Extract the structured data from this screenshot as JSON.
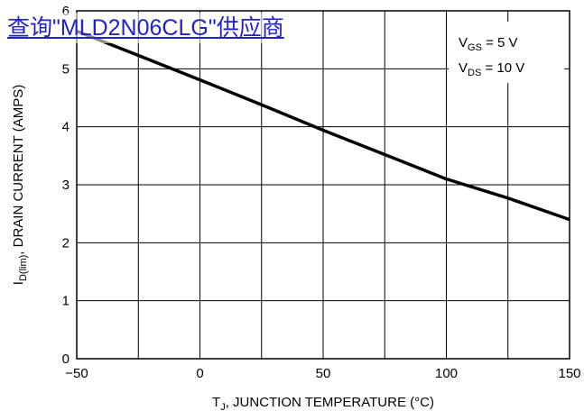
{
  "overlay_link": {
    "text": "查询\"MLD2N06CLG\"供应商"
  },
  "chart_data": {
    "type": "line",
    "xlabel": {
      "main": "T",
      "sub": "J",
      "rest": ", JUNCTION TEMPERATURE (°C)"
    },
    "ylabel": {
      "main": "I",
      "sub": "D(lim)",
      "rest": ", DRAIN CURRENT (AMPS)"
    },
    "xlim": [
      -50,
      150
    ],
    "ylim": [
      0,
      6
    ],
    "x_ticks": [
      -50,
      0,
      50,
      100,
      150
    ],
    "y_ticks": [
      0,
      1,
      2,
      3,
      4,
      5,
      6
    ],
    "x_tick_labels": [
      "−50",
      "0",
      "50",
      "100",
      "150"
    ],
    "y_tick_labels": [
      "0",
      "1",
      "2",
      "3",
      "4",
      "5",
      "6"
    ],
    "grid": true,
    "annotations": [
      {
        "main": "V",
        "sub": "GS",
        "rest": " = 5 V"
      },
      {
        "main": "V",
        "sub": "DS",
        "rest": " = 10 V"
      }
    ],
    "series": [
      {
        "x": [
          -50,
          -25,
          0,
          25,
          50,
          75,
          100,
          125,
          150
        ],
        "y": [
          5.65,
          5.23,
          4.81,
          4.38,
          3.94,
          3.52,
          3.1,
          2.77,
          2.4
        ]
      }
    ]
  }
}
